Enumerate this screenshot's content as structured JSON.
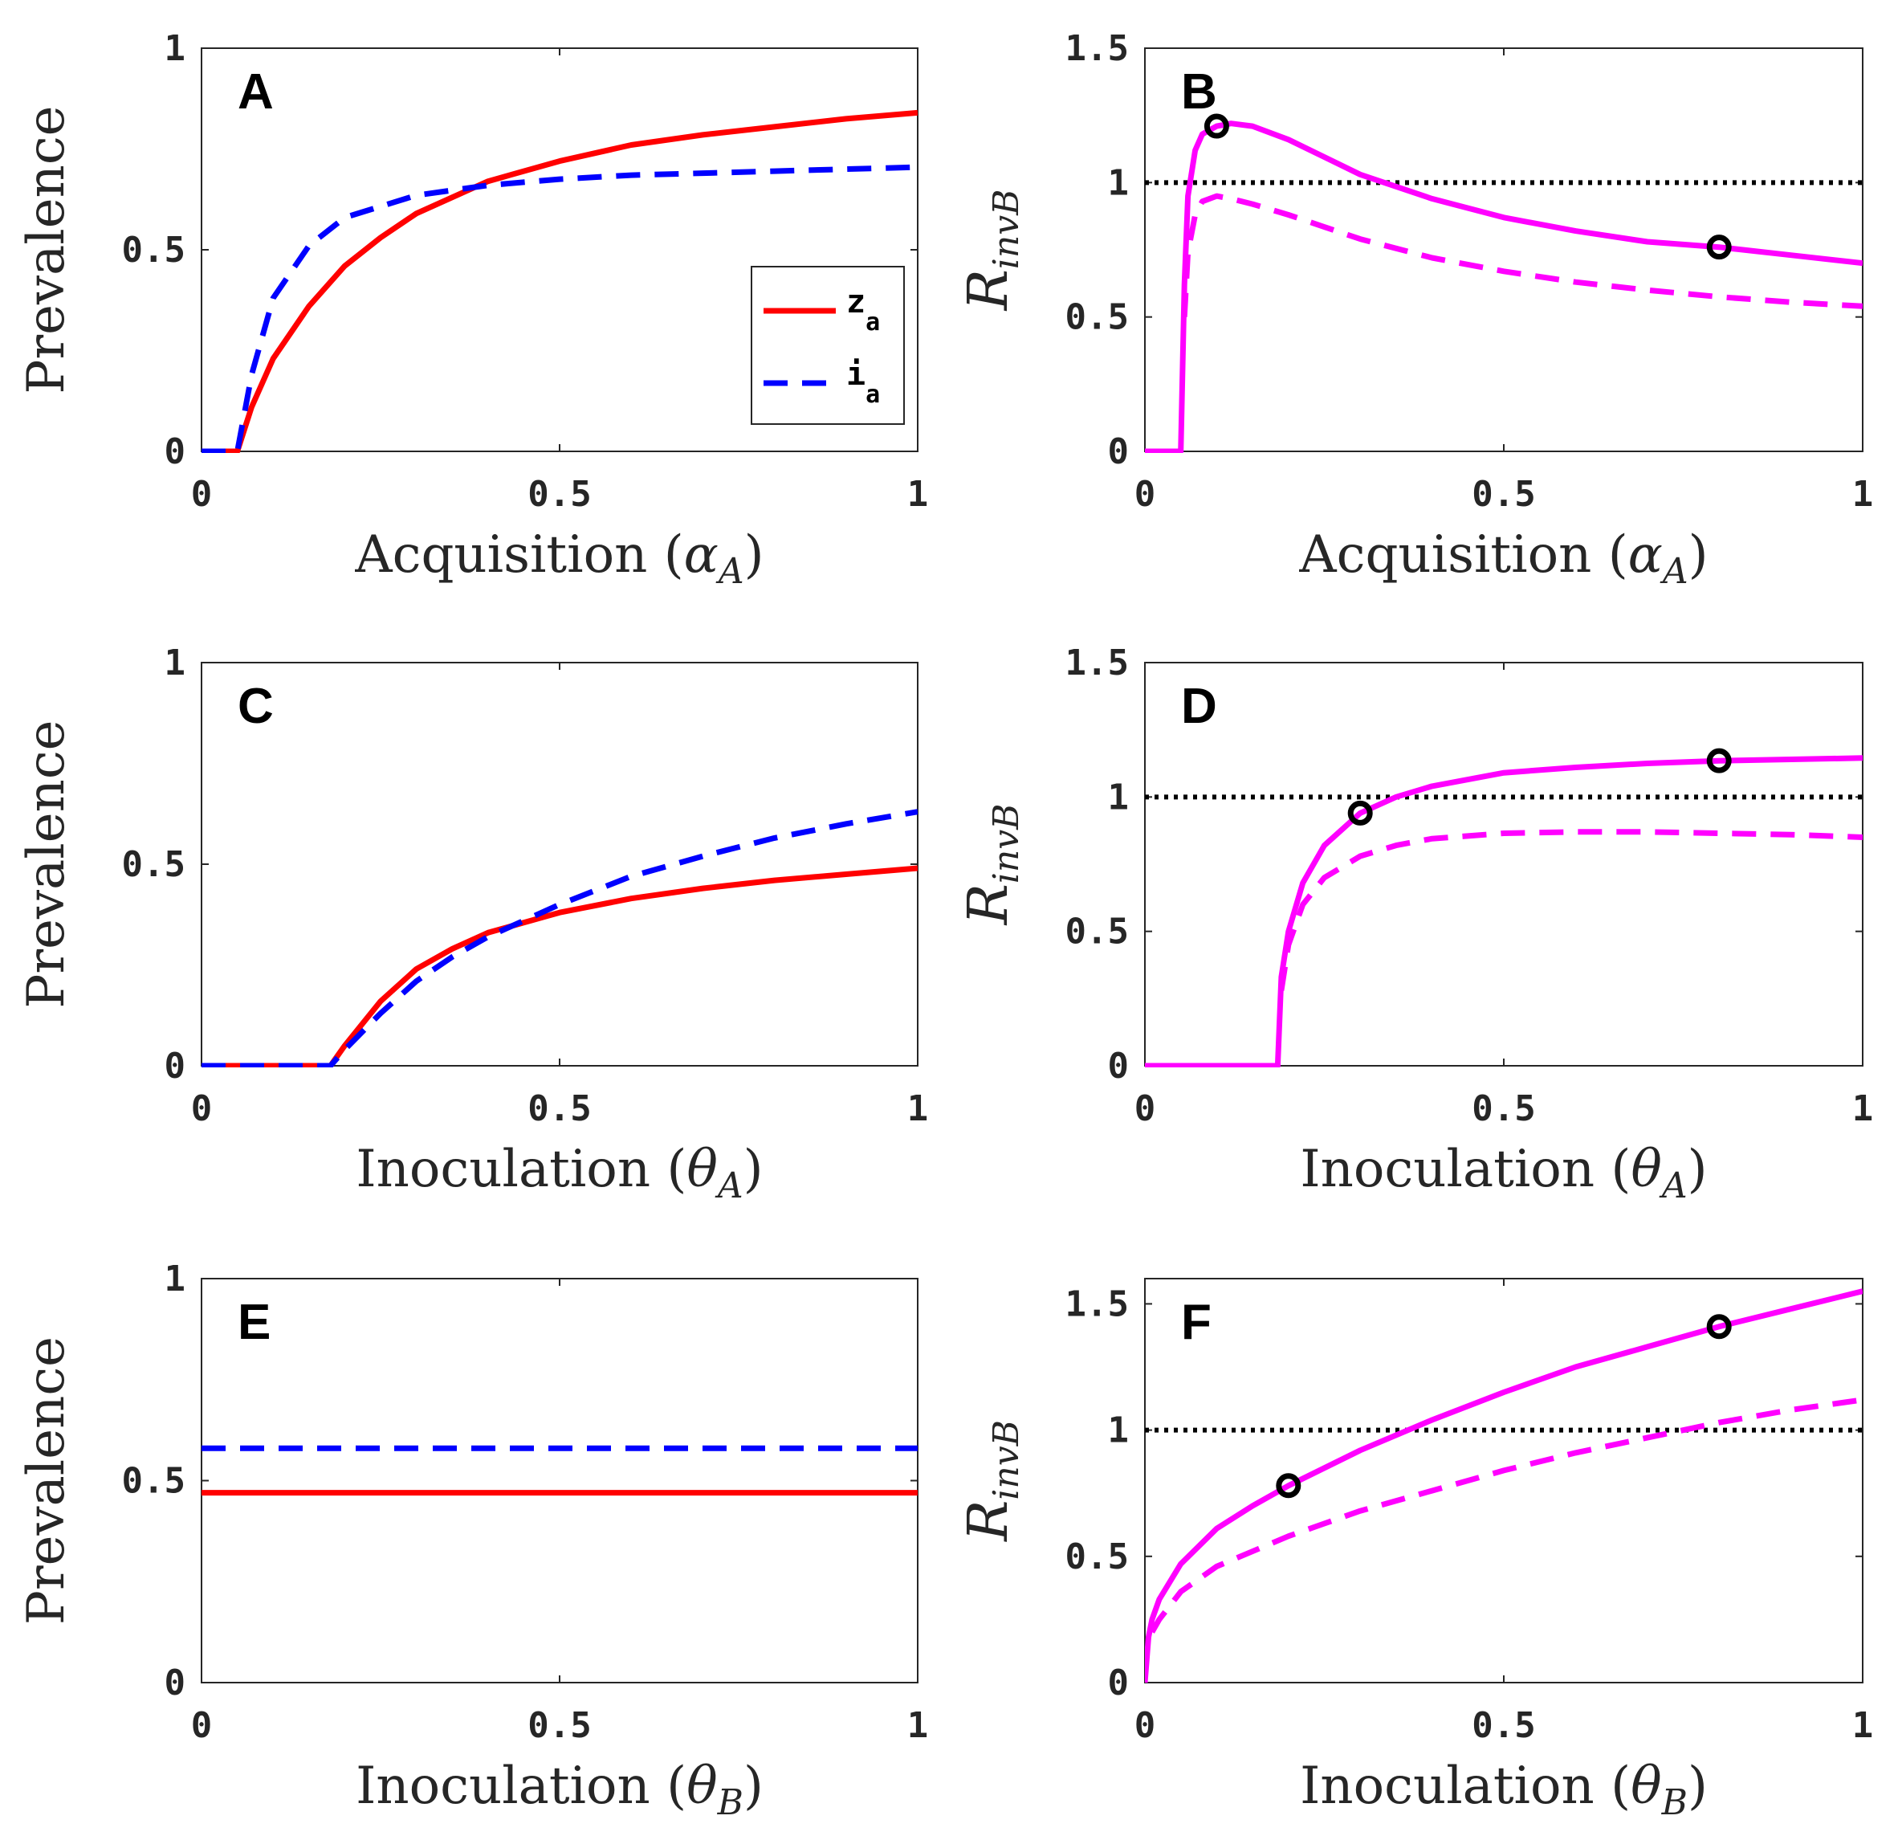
{
  "chart_data": [
    {
      "id": "A",
      "type": "line",
      "panel_label": "A",
      "xlabel": "Acquisition (α_A)",
      "ylabel": "Prevalence",
      "xlim": [
        0,
        1
      ],
      "ylim": [
        0,
        1
      ],
      "xticks": [
        {
          "value": 0,
          "label": "0"
        },
        {
          "value": 0.5,
          "label": "0.5"
        },
        {
          "value": 1,
          "label": "1"
        }
      ],
      "yticks": [
        {
          "value": 0,
          "label": "0"
        },
        {
          "value": 0.5,
          "label": "0.5"
        },
        {
          "value": 1,
          "label": "1"
        }
      ],
      "legend": {
        "position": "inside-right",
        "entries": [
          {
            "base": "z",
            "sub": "a",
            "color": "#ff0000",
            "style": "solid"
          },
          {
            "base": "i",
            "sub": "a",
            "color": "#0000ff",
            "style": "dashed"
          }
        ]
      },
      "series": [
        {
          "name": "z_a",
          "color": "#ff0000",
          "style": "solid",
          "x": [
            0,
            0.05,
            0.07,
            0.1,
            0.15,
            0.2,
            0.25,
            0.3,
            0.4,
            0.5,
            0.6,
            0.7,
            0.8,
            0.9,
            1.0
          ],
          "y": [
            0,
            0,
            0.11,
            0.23,
            0.36,
            0.46,
            0.53,
            0.59,
            0.67,
            0.72,
            0.76,
            0.785,
            0.805,
            0.825,
            0.84
          ]
        },
        {
          "name": "i_a",
          "color": "#0000ff",
          "style": "dashed",
          "x": [
            0,
            0.05,
            0.07,
            0.1,
            0.15,
            0.2,
            0.3,
            0.4,
            0.5,
            0.6,
            0.7,
            0.8,
            0.9,
            1.0
          ],
          "y": [
            0,
            0,
            0.19,
            0.38,
            0.51,
            0.58,
            0.635,
            0.66,
            0.675,
            0.685,
            0.69,
            0.695,
            0.7,
            0.705
          ]
        }
      ]
    },
    {
      "id": "B",
      "type": "line",
      "panel_label": "B",
      "xlabel": "Acquisition (α_A)",
      "ylabel": "R_invB",
      "xlim": [
        0,
        1
      ],
      "ylim": [
        0,
        1.5
      ],
      "xticks": [
        {
          "value": 0,
          "label": "0"
        },
        {
          "value": 0.5,
          "label": "0.5"
        },
        {
          "value": 1,
          "label": "1"
        }
      ],
      "yticks": [
        {
          "value": 0,
          "label": "0"
        },
        {
          "value": 0.5,
          "label": "0.5"
        },
        {
          "value": 1,
          "label": "1"
        },
        {
          "value": 1.5,
          "label": "1.5"
        }
      ],
      "threshold": 1,
      "series": [
        {
          "name": "solid",
          "color": "#ff00ff",
          "style": "solid",
          "x": [
            0,
            0.05,
            0.055,
            0.06,
            0.07,
            0.08,
            0.1,
            0.12,
            0.15,
            0.2,
            0.3,
            0.4,
            0.5,
            0.6,
            0.7,
            0.8,
            0.9,
            1.0
          ],
          "y": [
            0,
            0,
            0.62,
            0.95,
            1.12,
            1.18,
            1.21,
            1.22,
            1.21,
            1.16,
            1.03,
            0.94,
            0.87,
            0.82,
            0.78,
            0.76,
            0.73,
            0.7
          ]
        },
        {
          "name": "dashed",
          "color": "#ff00ff",
          "style": "dashed",
          "x": [
            0.055,
            0.06,
            0.07,
            0.08,
            0.1,
            0.12,
            0.15,
            0.2,
            0.3,
            0.4,
            0.5,
            0.6,
            0.7,
            0.8,
            0.9,
            1.0
          ],
          "y": [
            0.5,
            0.74,
            0.88,
            0.93,
            0.95,
            0.94,
            0.92,
            0.88,
            0.79,
            0.72,
            0.67,
            0.63,
            0.6,
            0.575,
            0.555,
            0.54
          ]
        }
      ],
      "markers": [
        {
          "x": 0.1,
          "y": 1.21
        },
        {
          "x": 0.8,
          "y": 0.76
        }
      ]
    },
    {
      "id": "C",
      "type": "line",
      "panel_label": "C",
      "xlabel": "Inoculation (θ_A)",
      "ylabel": "Prevalence",
      "xlim": [
        0,
        1
      ],
      "ylim": [
        0,
        1
      ],
      "xticks": [
        {
          "value": 0,
          "label": "0"
        },
        {
          "value": 0.5,
          "label": "0.5"
        },
        {
          "value": 1,
          "label": "1"
        }
      ],
      "yticks": [
        {
          "value": 0,
          "label": "0"
        },
        {
          "value": 0.5,
          "label": "0.5"
        },
        {
          "value": 1,
          "label": "1"
        }
      ],
      "series": [
        {
          "name": "z_a",
          "color": "#ff0000",
          "style": "solid",
          "x": [
            0,
            0.18,
            0.2,
            0.25,
            0.3,
            0.35,
            0.4,
            0.5,
            0.6,
            0.7,
            0.8,
            0.9,
            1.0
          ],
          "y": [
            0,
            0,
            0.05,
            0.16,
            0.24,
            0.29,
            0.33,
            0.38,
            0.415,
            0.44,
            0.46,
            0.475,
            0.49
          ]
        },
        {
          "name": "i_a",
          "color": "#0000ff",
          "style": "dashed",
          "x": [
            0,
            0.18,
            0.2,
            0.25,
            0.3,
            0.35,
            0.4,
            0.5,
            0.6,
            0.7,
            0.8,
            0.9,
            1.0
          ],
          "y": [
            0,
            0,
            0.04,
            0.13,
            0.21,
            0.27,
            0.32,
            0.4,
            0.47,
            0.52,
            0.565,
            0.6,
            0.63
          ]
        }
      ]
    },
    {
      "id": "D",
      "type": "line",
      "panel_label": "D",
      "xlabel": "Inoculation (θ_A)",
      "ylabel": "R_invB",
      "xlim": [
        0,
        1
      ],
      "ylim": [
        0,
        1.5
      ],
      "xticks": [
        {
          "value": 0,
          "label": "0"
        },
        {
          "value": 0.5,
          "label": "0.5"
        },
        {
          "value": 1,
          "label": "1"
        }
      ],
      "yticks": [
        {
          "value": 0,
          "label": "0"
        },
        {
          "value": 0.5,
          "label": "0.5"
        },
        {
          "value": 1,
          "label": "1"
        },
        {
          "value": 1.5,
          "label": "1.5"
        }
      ],
      "threshold": 1,
      "series": [
        {
          "name": "solid",
          "color": "#ff00ff",
          "style": "solid",
          "x": [
            0,
            0.185,
            0.19,
            0.2,
            0.22,
            0.25,
            0.3,
            0.35,
            0.4,
            0.5,
            0.6,
            0.7,
            0.8,
            0.9,
            1.0
          ],
          "y": [
            0,
            0,
            0.33,
            0.5,
            0.68,
            0.82,
            0.94,
            1.0,
            1.04,
            1.09,
            1.11,
            1.125,
            1.135,
            1.14,
            1.145
          ]
        },
        {
          "name": "dashed",
          "color": "#ff00ff",
          "style": "dashed",
          "x": [
            0.19,
            0.2,
            0.22,
            0.25,
            0.3,
            0.35,
            0.4,
            0.5,
            0.6,
            0.7,
            0.8,
            0.9,
            1.0
          ],
          "y": [
            0.28,
            0.45,
            0.6,
            0.7,
            0.78,
            0.82,
            0.845,
            0.865,
            0.87,
            0.87,
            0.865,
            0.86,
            0.85
          ]
        }
      ],
      "markers": [
        {
          "x": 0.3,
          "y": 0.94
        },
        {
          "x": 0.8,
          "y": 1.135
        }
      ]
    },
    {
      "id": "E",
      "type": "line",
      "panel_label": "E",
      "xlabel": "Inoculation (θ_B)",
      "ylabel": "Prevalence",
      "xlim": [
        0,
        1
      ],
      "ylim": [
        0,
        1
      ],
      "xticks": [
        {
          "value": 0,
          "label": "0"
        },
        {
          "value": 0.5,
          "label": "0.5"
        },
        {
          "value": 1,
          "label": "1"
        }
      ],
      "yticks": [
        {
          "value": 0,
          "label": "0"
        },
        {
          "value": 0.5,
          "label": "0.5"
        },
        {
          "value": 1,
          "label": "1"
        }
      ],
      "series": [
        {
          "name": "z_a",
          "color": "#ff0000",
          "style": "solid",
          "x": [
            0,
            1
          ],
          "y": [
            0.47,
            0.47
          ]
        },
        {
          "name": "i_a",
          "color": "#0000ff",
          "style": "dashed",
          "x": [
            0,
            1
          ],
          "y": [
            0.58,
            0.58
          ]
        }
      ]
    },
    {
      "id": "F",
      "type": "line",
      "panel_label": "F",
      "xlabel": "Inoculation (θ_B)",
      "ylabel": "R_invB",
      "xlim": [
        0,
        1
      ],
      "ylim": [
        0,
        1.6
      ],
      "xticks": [
        {
          "value": 0,
          "label": "0"
        },
        {
          "value": 0.5,
          "label": "0.5"
        },
        {
          "value": 1,
          "label": "1"
        }
      ],
      "yticks": [
        {
          "value": 0,
          "label": "0"
        },
        {
          "value": 0.5,
          "label": "0.5"
        },
        {
          "value": 1,
          "label": "1"
        },
        {
          "value": 1.5,
          "label": "1.5"
        }
      ],
      "threshold": 1,
      "series": [
        {
          "name": "solid",
          "color": "#ff00ff",
          "style": "solid",
          "x": [
            0,
            0.005,
            0.01,
            0.02,
            0.05,
            0.1,
            0.15,
            0.2,
            0.3,
            0.4,
            0.5,
            0.6,
            0.7,
            0.8,
            0.9,
            1.0
          ],
          "y": [
            0,
            0.18,
            0.25,
            0.33,
            0.47,
            0.61,
            0.7,
            0.78,
            0.92,
            1.04,
            1.15,
            1.25,
            1.33,
            1.41,
            1.48,
            1.55
          ]
        },
        {
          "name": "dashed",
          "color": "#ff00ff",
          "style": "dashed",
          "x": [
            0.01,
            0.02,
            0.05,
            0.1,
            0.2,
            0.3,
            0.4,
            0.5,
            0.6,
            0.7,
            0.8,
            0.9,
            1.0
          ],
          "y": [
            0.2,
            0.25,
            0.36,
            0.46,
            0.58,
            0.68,
            0.76,
            0.84,
            0.91,
            0.97,
            1.03,
            1.08,
            1.12
          ]
        }
      ],
      "markers": [
        {
          "x": 0.2,
          "y": 0.78
        },
        {
          "x": 0.8,
          "y": 1.41
        }
      ]
    }
  ]
}
